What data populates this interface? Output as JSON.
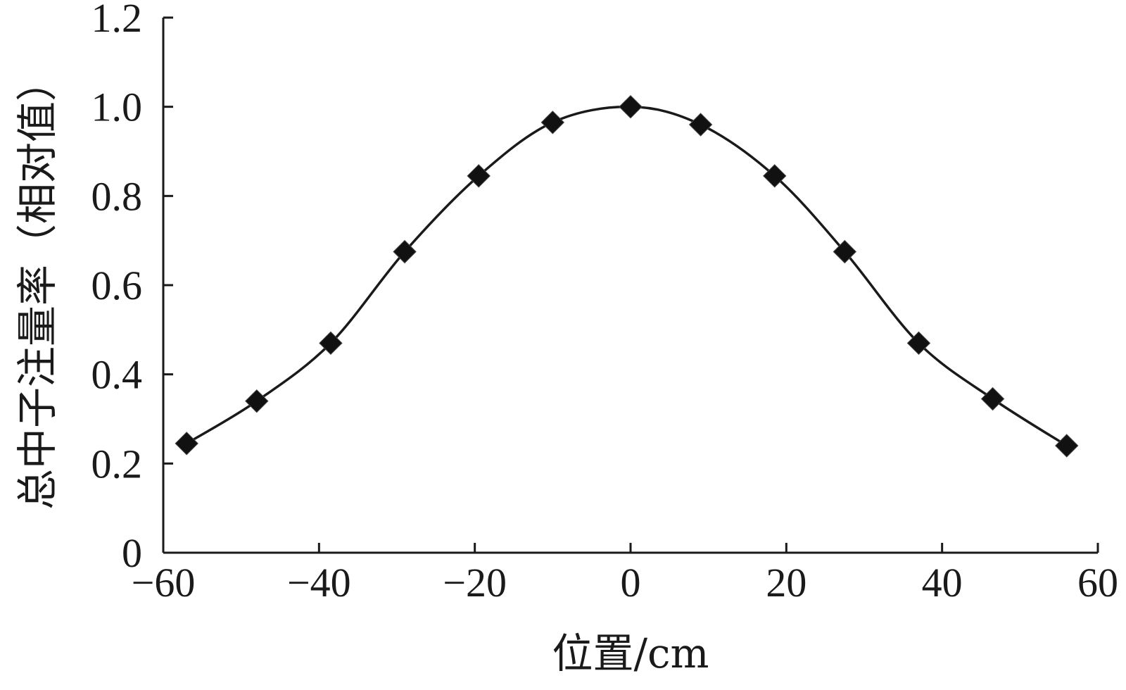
{
  "chart_data": {
    "type": "line",
    "title": "",
    "xlabel": "位置/cm",
    "ylabel": "总中子注量率（相对值）",
    "xlim": [
      -60,
      60
    ],
    "ylim": [
      0,
      1.2
    ],
    "x_ticks": [
      -60,
      -40,
      -20,
      0,
      20,
      40,
      60
    ],
    "x_tick_labels": [
      "−60",
      "−40",
      "−20",
      "0",
      "20",
      "40",
      "60"
    ],
    "y_ticks": [
      0,
      0.2,
      0.4,
      0.6,
      0.8,
      1.0,
      1.2
    ],
    "y_tick_labels": [
      "0",
      "0.2",
      "0.4",
      "0.6",
      "0.8",
      "1.0",
      "1.2"
    ],
    "grid": false,
    "legend": "none",
    "series": [
      {
        "marker": "diamond",
        "color": "#111111",
        "x": [
          -57,
          -48,
          -38.5,
          -29,
          -19.5,
          -10,
          0,
          9,
          18.5,
          27.5,
          37,
          46.5,
          56
        ],
        "y": [
          0.245,
          0.34,
          0.47,
          0.675,
          0.845,
          0.965,
          1.0,
          0.96,
          0.845,
          0.675,
          0.47,
          0.345,
          0.24
        ]
      }
    ],
    "fit_curve": {
      "style": "smooth",
      "color": "#111111"
    }
  }
}
